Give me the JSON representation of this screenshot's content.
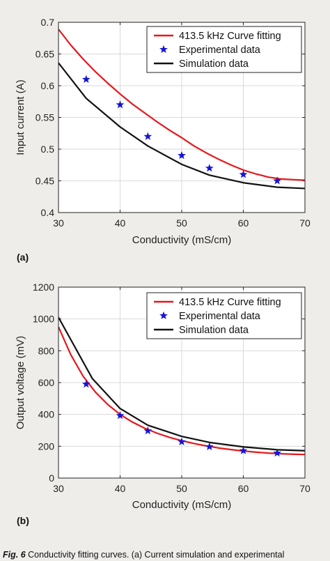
{
  "chart_data": [
    {
      "type": "line",
      "xlabel": "Conductivity (mS/cm)",
      "ylabel": "Input current (A)",
      "xlim": [
        30,
        70
      ],
      "ylim": [
        0.4,
        0.7
      ],
      "xticks": [
        "30",
        "40",
        "50",
        "60",
        "70"
      ],
      "yticks": [
        "0.4",
        "0.45",
        "0.5",
        "0.55",
        "0.6",
        "0.65",
        "0.7"
      ],
      "grid": true,
      "legend_position": "top-right",
      "series": [
        {
          "name": "413.5 kHz Curve fitting",
          "style": "line",
          "color": "#e8161b",
          "x": [
            30,
            32,
            34,
            36,
            38,
            40,
            42,
            44,
            46,
            48,
            50,
            52,
            54,
            56,
            58,
            60,
            62,
            64,
            66,
            68,
            70
          ],
          "y": [
            0.689,
            0.664,
            0.642,
            0.622,
            0.604,
            0.587,
            0.571,
            0.557,
            0.543,
            0.53,
            0.518,
            0.505,
            0.494,
            0.484,
            0.475,
            0.467,
            0.461,
            0.456,
            0.453,
            0.452,
            0.451
          ]
        },
        {
          "name": "Experimental data",
          "style": "marker",
          "color": "#1515d6",
          "x": [
            34.5,
            40,
            44.5,
            50,
            54.5,
            60,
            65.5
          ],
          "y": [
            0.61,
            0.57,
            0.52,
            0.49,
            0.47,
            0.46,
            0.45
          ]
        },
        {
          "name": "Simulation data",
          "style": "line",
          "color": "#111111",
          "x": [
            30,
            34.5,
            40,
            44.5,
            50,
            54.5,
            60,
            65.5,
            70
          ],
          "y": [
            0.636,
            0.58,
            0.535,
            0.505,
            0.476,
            0.459,
            0.447,
            0.44,
            0.438
          ]
        }
      ],
      "panel_label": "(a)"
    },
    {
      "type": "line",
      "xlabel": "Conductivity (mS/cm)",
      "ylabel": "Output voltage (mV)",
      "xlim": [
        30,
        70
      ],
      "ylim": [
        0,
        1200
      ],
      "xticks": [
        "30",
        "40",
        "50",
        "60",
        "70"
      ],
      "yticks": [
        "0",
        "200",
        "400",
        "600",
        "800",
        "1000",
        "1200"
      ],
      "grid": true,
      "legend_position": "top-right",
      "series": [
        {
          "name": "413.5 kHz Curve fitting",
          "style": "line",
          "color": "#e8161b",
          "x": [
            30,
            32,
            34,
            36,
            38,
            40,
            42,
            44,
            46,
            48,
            50,
            52,
            54,
            56,
            58,
            60,
            62,
            64,
            66,
            68,
            70
          ],
          "y": [
            950,
            775,
            640,
            540,
            462,
            400,
            352,
            313,
            282,
            256,
            235,
            217,
            202,
            189,
            179,
            170,
            163,
            157,
            153,
            150,
            148
          ]
        },
        {
          "name": "Experimental data",
          "style": "marker",
          "color": "#1515d6",
          "x": [
            34.5,
            40,
            44.5,
            50,
            54.5,
            60,
            65.5
          ],
          "y": [
            590,
            393,
            297,
            228,
            197,
            172,
            157
          ]
        },
        {
          "name": "Simulation data",
          "style": "line",
          "color": "#111111",
          "x": [
            30,
            35.5,
            40,
            44.5,
            50,
            54.5,
            60,
            65.5,
            70
          ],
          "y": [
            1010,
            625,
            437,
            332,
            262,
            224,
            196,
            178,
            172
          ]
        }
      ],
      "panel_label": "(b)"
    }
  ],
  "caption": {
    "fig_number": "Fig. 6",
    "text": "Conductivity fitting curves. (a) Current simulation and experimental"
  }
}
